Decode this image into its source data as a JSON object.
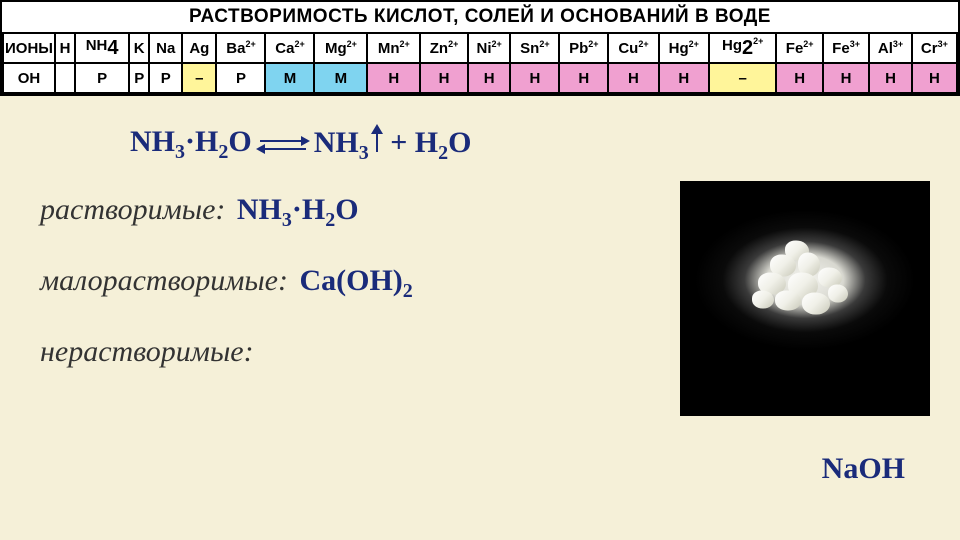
{
  "title": "РАСТВОРИМОСТЬ КИСЛОТ, СОЛЕЙ И ОСНОВАНИЙ В ВОДЕ",
  "table": {
    "row_labels": [
      "ИОНЫ",
      "ОН"
    ],
    "ions": [
      "H",
      "NH₄",
      "K",
      "Na",
      "Ag",
      "Ba²⁺",
      "Ca²⁺",
      "Mg²⁺",
      "Mn²⁺",
      "Zn²⁺",
      "Ni²⁺",
      "Sn²⁺",
      "Pb²⁺",
      "Cu²⁺",
      "Hg²⁺",
      "Hg₂²⁺",
      "Fe²⁺",
      "Fe³⁺",
      "Al³⁺",
      "Cr³⁺"
    ],
    "values": [
      "",
      "Р",
      "Р",
      "Р",
      "–",
      "Р",
      "М",
      "М",
      "Н",
      "Н",
      "Н",
      "Н",
      "Н",
      "Н",
      "Н",
      "–",
      "Н",
      "Н",
      "Н",
      "Н"
    ],
    "cell_colors": {
      "default": "#ffffff",
      "dash": "#fff59a",
      "M": "#7fd4f0",
      "H": "#f0a0d0"
    }
  },
  "equation": {
    "left": "NH₃·H₂O",
    "right_a": "NH₃",
    "right_b": "H₂O"
  },
  "lines": {
    "soluble_label": "растворимые:",
    "soluble_value": "NH₃·H₂O",
    "slight_label": "малорастворимые:",
    "slight_value": "Ca(OH)₂",
    "insoluble_label": "нерастворимые:",
    "insoluble_value": ""
  },
  "photo_label": "NaOH",
  "colors": {
    "formula": "#1a2b7a",
    "body_bg": "#f5f0d8"
  }
}
